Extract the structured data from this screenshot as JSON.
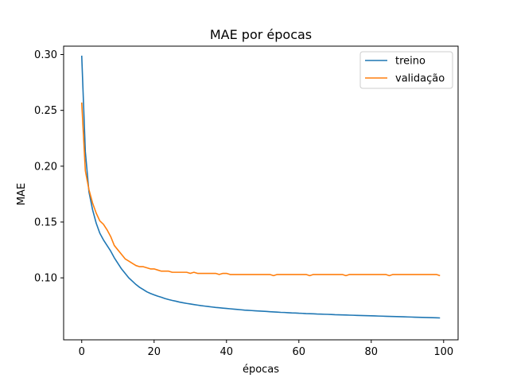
{
  "chart_data": {
    "type": "line",
    "title": "MAE por épocas",
    "xlabel": "épocas",
    "ylabel": "MAE",
    "xlim": [
      -5,
      104
    ],
    "ylim": [
      0.0445,
      0.3075
    ],
    "xticks": [
      0,
      20,
      40,
      60,
      80,
      100
    ],
    "yticks": [
      0.1,
      0.15,
      0.2,
      0.25,
      0.3
    ],
    "grid": false,
    "legend_position": "top-right",
    "series": [
      {
        "name": "treino",
        "color": "#1f77b4",
        "x": [
          0,
          1,
          2,
          3,
          4,
          5,
          6,
          7,
          8,
          9,
          10,
          11,
          12,
          13,
          14,
          15,
          16,
          17,
          18,
          19,
          20,
          21,
          22,
          23,
          24,
          25,
          26,
          27,
          28,
          29,
          30,
          31,
          32,
          33,
          34,
          35,
          36,
          37,
          38,
          39,
          40,
          41,
          42,
          43,
          44,
          45,
          46,
          47,
          48,
          49,
          50,
          51,
          52,
          53,
          54,
          55,
          56,
          57,
          58,
          59,
          60,
          61,
          62,
          63,
          64,
          65,
          66,
          67,
          68,
          69,
          70,
          71,
          72,
          73,
          74,
          75,
          76,
          77,
          78,
          79,
          80,
          81,
          82,
          83,
          84,
          85,
          86,
          87,
          88,
          89,
          90,
          91,
          92,
          93,
          94,
          95,
          96,
          97,
          98,
          99
        ],
        "y": [
          0.299,
          0.213,
          0.177,
          0.161,
          0.149,
          0.14,
          0.134,
          0.129,
          0.124,
          0.118,
          0.113,
          0.108,
          0.104,
          0.1,
          0.097,
          0.094,
          0.0915,
          0.0895,
          0.0875,
          0.086,
          0.0848,
          0.0836,
          0.0826,
          0.0815,
          0.0806,
          0.0798,
          0.0791,
          0.0783,
          0.0777,
          0.0771,
          0.0766,
          0.0761,
          0.0756,
          0.0751,
          0.0747,
          0.0743,
          0.0739,
          0.0735,
          0.0732,
          0.0729,
          0.0726,
          0.0723,
          0.072,
          0.0717,
          0.0714,
          0.0711,
          0.0709,
          0.0707,
          0.0705,
          0.0703,
          0.0701,
          0.0699,
          0.0697,
          0.0695,
          0.0693,
          0.0691,
          0.069,
          0.0688,
          0.0686,
          0.0685,
          0.0683,
          0.0682,
          0.068,
          0.0679,
          0.0678,
          0.0676,
          0.0675,
          0.0674,
          0.0673,
          0.0672,
          0.067,
          0.0669,
          0.0668,
          0.0667,
          0.0666,
          0.0665,
          0.0664,
          0.0663,
          0.0662,
          0.0661,
          0.066,
          0.0659,
          0.0658,
          0.0657,
          0.0656,
          0.0655,
          0.0654,
          0.0653,
          0.0652,
          0.0651,
          0.065,
          0.0649,
          0.0648,
          0.0647,
          0.0646,
          0.0645,
          0.0644,
          0.0643,
          0.0642,
          0.0641
        ]
      },
      {
        "name": "validação",
        "color": "#ff7f0e",
        "x": [
          0,
          1,
          2,
          3,
          4,
          5,
          6,
          7,
          8,
          9,
          10,
          11,
          12,
          13,
          14,
          15,
          16,
          17,
          18,
          19,
          20,
          21,
          22,
          23,
          24,
          25,
          26,
          27,
          28,
          29,
          30,
          31,
          32,
          33,
          34,
          35,
          36,
          37,
          38,
          39,
          40,
          41,
          42,
          43,
          44,
          45,
          46,
          47,
          48,
          49,
          50,
          51,
          52,
          53,
          54,
          55,
          56,
          57,
          58,
          59,
          60,
          61,
          62,
          63,
          64,
          65,
          66,
          67,
          68,
          69,
          70,
          71,
          72,
          73,
          74,
          75,
          76,
          77,
          78,
          79,
          80,
          81,
          82,
          83,
          84,
          85,
          86,
          87,
          88,
          89,
          90,
          91,
          92,
          93,
          94,
          95,
          96,
          97,
          98,
          99
        ],
        "y": [
          0.257,
          0.196,
          0.179,
          0.167,
          0.158,
          0.151,
          0.148,
          0.143,
          0.137,
          0.129,
          0.125,
          0.121,
          0.117,
          0.115,
          0.113,
          0.111,
          0.11,
          0.11,
          0.109,
          0.108,
          0.108,
          0.107,
          0.106,
          0.106,
          0.106,
          0.105,
          0.105,
          0.105,
          0.105,
          0.105,
          0.104,
          0.105,
          0.104,
          0.104,
          0.104,
          0.104,
          0.104,
          0.104,
          0.103,
          0.104,
          0.104,
          0.103,
          0.103,
          0.103,
          0.103,
          0.103,
          0.103,
          0.103,
          0.103,
          0.103,
          0.103,
          0.103,
          0.103,
          0.102,
          0.103,
          0.103,
          0.103,
          0.103,
          0.103,
          0.103,
          0.103,
          0.103,
          0.103,
          0.102,
          0.103,
          0.103,
          0.103,
          0.103,
          0.103,
          0.103,
          0.103,
          0.103,
          0.103,
          0.102,
          0.103,
          0.103,
          0.103,
          0.103,
          0.103,
          0.103,
          0.103,
          0.103,
          0.103,
          0.103,
          0.103,
          0.102,
          0.103,
          0.103,
          0.103,
          0.103,
          0.103,
          0.103,
          0.103,
          0.103,
          0.103,
          0.103,
          0.103,
          0.103,
          0.103,
          0.102
        ]
      }
    ]
  }
}
